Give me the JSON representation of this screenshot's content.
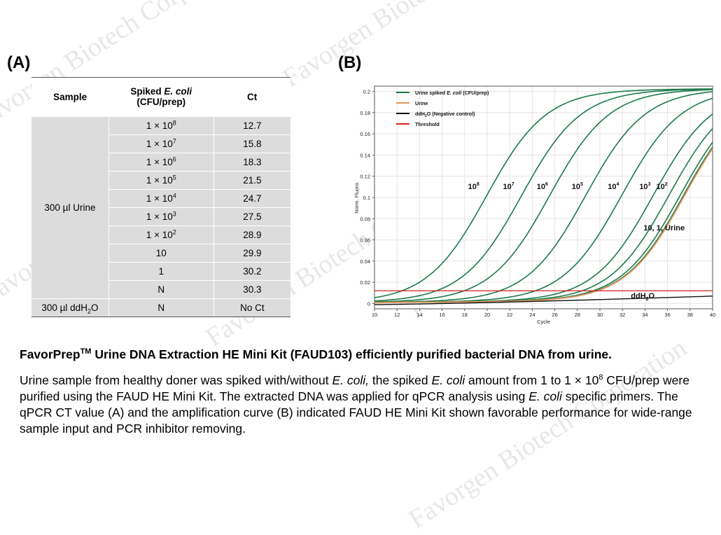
{
  "panel_a_label": "(A)",
  "panel_b_label": "(B)",
  "table": {
    "header_sample": "Sample",
    "header_spiked_prefix": "Spiked ",
    "header_spiked_italic": "E. coli",
    "header_spiked_unit": "(CFU/prep)",
    "header_ct": "Ct",
    "urine_group_label": "300 µl Urine",
    "urine_rows": [
      {
        "base": "1 × 10",
        "exp": "8",
        "ct": "12.7"
      },
      {
        "base": "1 × 10",
        "exp": "7",
        "ct": "15.8"
      },
      {
        "base": "1 × 10",
        "exp": "6",
        "ct": "18.3"
      },
      {
        "base": "1 × 10",
        "exp": "5",
        "ct": "21.5"
      },
      {
        "base": "1 × 10",
        "exp": "4",
        "ct": "24.7"
      },
      {
        "base": "1 × 10",
        "exp": "3",
        "ct": "27.5"
      },
      {
        "base": "1 × 10",
        "exp": "2",
        "ct": "28.9"
      },
      {
        "base": "10",
        "exp": "",
        "ct": "29.9"
      },
      {
        "base": "1",
        "exp": "",
        "ct": "30.2"
      },
      {
        "base": "N",
        "exp": "",
        "ct": "30.3"
      }
    ],
    "water_label_prefix": "300 µl ddH",
    "water_label_sub": "2",
    "water_label_suffix": "O",
    "water_spiked": "N",
    "water_ct": "No Ct"
  },
  "chart_data": {
    "type": "line",
    "xlabel": "Cycle",
    "ylabel": "Norm. Fluoro.",
    "xlim": [
      10,
      40
    ],
    "ylim": [
      -0.005,
      0.205
    ],
    "xticks": [
      10,
      12,
      14,
      16,
      18,
      20,
      22,
      24,
      26,
      28,
      30,
      32,
      34,
      36,
      38,
      40
    ],
    "yticks": [
      0,
      0.02,
      0.04,
      0.06,
      0.08,
      0.1,
      0.12,
      0.14,
      0.16,
      0.18,
      0.2
    ],
    "threshold": 0.012,
    "legend_position": "top-left",
    "legend": [
      {
        "label_main": "Urine spiked ",
        "label_italic": "E. coli",
        "label_tail": " (CFU/prep)",
        "color": "#1d7a4a"
      },
      {
        "label_main": "Urine",
        "label_italic": "",
        "label_tail": "",
        "color": "#e8955a"
      },
      {
        "label_main": "ddH",
        "label_sub": "2",
        "label_tail": "O (Negative control)",
        "color": "#111111"
      },
      {
        "label_main": "Threshold",
        "label_italic": "",
        "label_tail": "",
        "color": "#d62020"
      }
    ],
    "spiked_curves": [
      {
        "ct": 12.7,
        "max": 0.2
      },
      {
        "ct": 15.8,
        "max": 0.2
      },
      {
        "ct": 18.3,
        "max": 0.2
      },
      {
        "ct": 21.5,
        "max": 0.2
      },
      {
        "ct": 24.7,
        "max": 0.2
      },
      {
        "ct": 27.5,
        "max": 0.2
      },
      {
        "ct": 28.9,
        "max": 0.2
      },
      {
        "ct": 29.9,
        "max": 0.2
      },
      {
        "ct": 30.2,
        "max": 0.2
      }
    ],
    "urine_curve": {
      "ct": 30.3,
      "max": 0.2
    },
    "negative_end_value": 0.007,
    "annotations": [
      {
        "base": "10",
        "exp": "8",
        "x": 18.8,
        "y": 0.108
      },
      {
        "base": "10",
        "exp": "7",
        "x": 21.9,
        "y": 0.108
      },
      {
        "base": "10",
        "exp": "6",
        "x": 24.9,
        "y": 0.108
      },
      {
        "base": "10",
        "exp": "5",
        "x": 28.0,
        "y": 0.108
      },
      {
        "base": "10",
        "exp": "4",
        "x": 31.2,
        "y": 0.108
      },
      {
        "base": "10",
        "exp": "3",
        "x": 34.0,
        "y": 0.108
      },
      {
        "base": "10",
        "exp": "2",
        "x": 35.5,
        "y": 0.108
      },
      {
        "base": "10, 1, Urine",
        "exp": "",
        "x": 35.7,
        "y": 0.069
      },
      {
        "base": "ddH",
        "sub": "2",
        "tail": "O",
        "exp": "",
        "x": 33.8,
        "y": 0.005
      }
    ]
  },
  "caption": {
    "title_prefix": "FavorPrep",
    "title_tm": "TM",
    "title_rest": " Urine DNA Extraction HE Mini Kit (FAUD103) efficiently purified bacterial DNA from urine.",
    "body_1": "Urine sample from healthy doner was spiked with/without ",
    "body_ecoli_1": "E. coli,",
    "body_2": " the spiked ",
    "body_ecoli_2": "E. coli",
    "body_3": " amount from 1 to 1 × 10",
    "body_exp": "8",
    "body_4": " CFU/prep were purified using the FAUD HE Mini Kit. The extracted DNA was applied for qPCR analysis using ",
    "body_ecoli_3": "E. coli",
    "body_5": " specific primers. The qPCR CT value (A) and the amplification curve (B) indicated FAUD HE Mini Kit shown favorable performance for wide-range sample input and PCR inhibitor removing."
  },
  "watermark": "Favorgen Biotech Corporation"
}
